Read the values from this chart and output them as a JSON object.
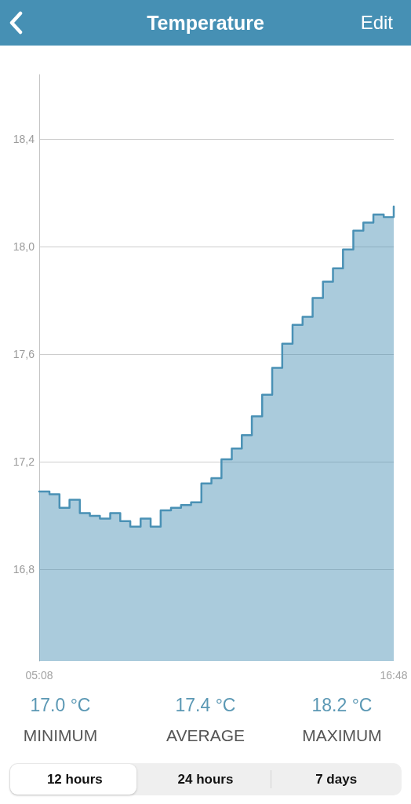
{
  "chart_data": {
    "type": "area",
    "title": "Temperature",
    "x": [
      5.1333,
      5.47,
      5.47,
      5.8,
      5.8,
      6.13,
      6.13,
      6.47,
      6.47,
      6.8,
      6.8,
      7.13,
      7.13,
      7.47,
      7.47,
      7.8,
      7.8,
      8.13,
      8.13,
      8.47,
      8.47,
      8.8,
      8.8,
      9.13,
      9.13,
      9.47,
      9.47,
      9.8,
      9.8,
      10.13,
      10.13,
      10.47,
      10.47,
      10.8,
      10.8,
      11.13,
      11.13,
      11.47,
      11.47,
      11.8,
      11.8,
      12.13,
      12.13,
      12.47,
      12.47,
      12.8,
      12.8,
      13.13,
      13.13,
      13.47,
      13.47,
      13.8,
      13.8,
      14.13,
      14.13,
      14.47,
      14.47,
      14.8,
      14.8,
      15.13,
      15.13,
      15.47,
      15.47,
      15.8,
      15.8,
      16.13,
      16.13,
      16.47,
      16.47,
      16.8,
      16.8
    ],
    "values": [
      17.09,
      17.09,
      17.08,
      17.08,
      17.03,
      17.03,
      17.06,
      17.06,
      17.01,
      17.01,
      17.0,
      17.0,
      16.99,
      16.99,
      17.01,
      17.01,
      16.98,
      16.98,
      16.96,
      16.96,
      16.99,
      16.99,
      16.96,
      16.96,
      17.02,
      17.02,
      17.03,
      17.03,
      17.04,
      17.04,
      17.05,
      17.05,
      17.12,
      17.12,
      17.14,
      17.14,
      17.21,
      17.21,
      17.25,
      17.25,
      17.3,
      17.3,
      17.37,
      17.37,
      17.45,
      17.45,
      17.55,
      17.55,
      17.64,
      17.64,
      17.71,
      17.71,
      17.74,
      17.74,
      17.81,
      17.81,
      17.87,
      17.87,
      17.92,
      17.92,
      17.99,
      17.99,
      18.06,
      18.06,
      18.09,
      18.09,
      18.12,
      18.12,
      18.11,
      18.11,
      18.15
    ],
    "color": "#4a91b5",
    "xlim": [
      5.1333,
      16.8
    ],
    "xticks": [
      {
        "value": 5.1333,
        "label": "05:08"
      },
      {
        "value": 16.8,
        "label": "16:48"
      }
    ],
    "ylim": [
      16.46,
      18.64
    ],
    "yticks": [
      {
        "value": 16.8,
        "label": "16,8"
      },
      {
        "value": 17.2,
        "label": "17,2"
      },
      {
        "value": 17.6,
        "label": "17,6"
      },
      {
        "value": 18.0,
        "label": "18,0"
      },
      {
        "value": 18.4,
        "label": "18,4"
      }
    ],
    "grid": "y",
    "annotations": [
      "17.0 °C",
      "MINIMUM",
      "17.4 °C",
      "AVERAGE",
      "18.2 °C",
      "MAXIMUM",
      "Edit",
      "12 hours",
      "24 hours",
      "7 days"
    ]
  }
}
